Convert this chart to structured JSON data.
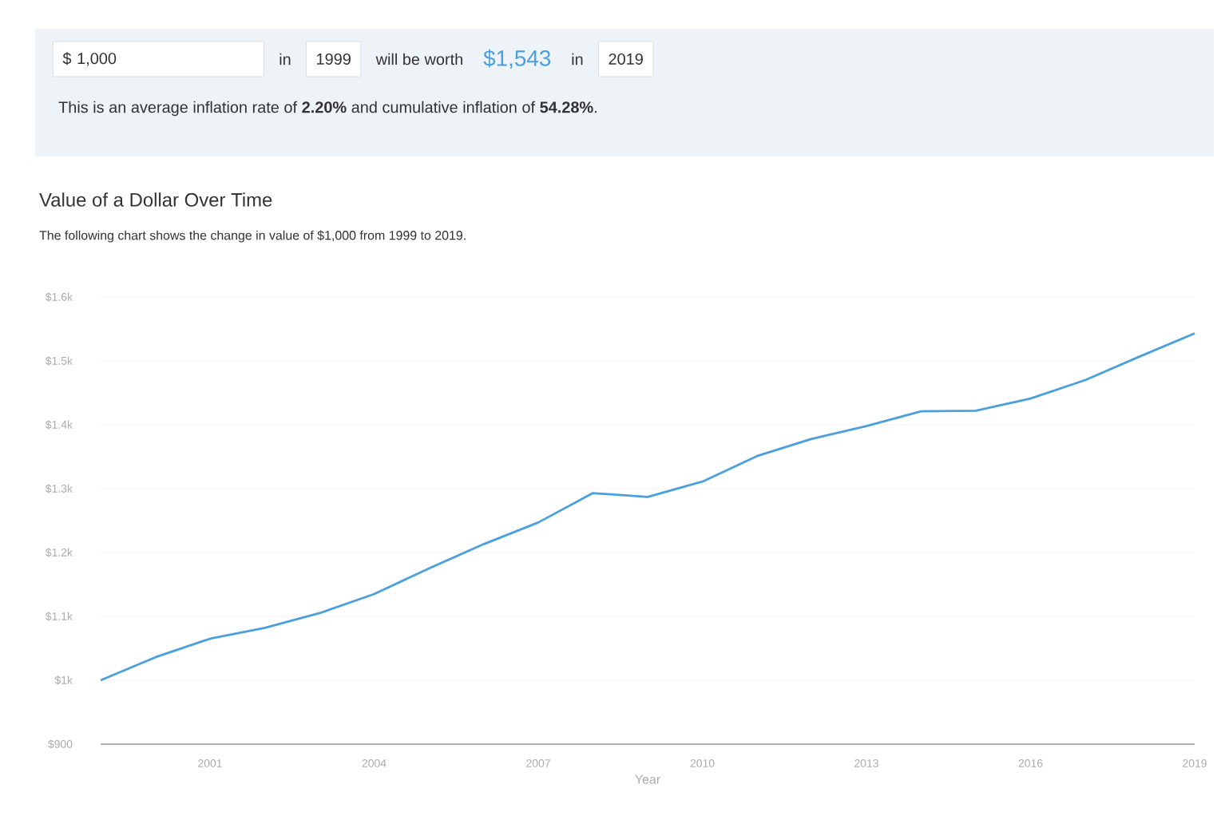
{
  "chart_data": {
    "type": "line",
    "title": "Value of a Dollar Over Time",
    "subtitle": "The following chart shows the change in value of $1,000 from 1999 to 2019.",
    "xlabel": "Year",
    "annotations": [
      "$ 1,000",
      "in",
      "1999",
      "will be worth",
      "$1,543",
      "in",
      "2019",
      "This is an average inflation rate of **2.20%** and cumulative inflation of **54.28%**."
    ],
    "x": [
      1999,
      2000,
      2001,
      2002,
      2003,
      2004,
      2005,
      2006,
      2007,
      2008,
      2009,
      2010,
      2011,
      2012,
      2013,
      2014,
      2015,
      2016,
      2017,
      2018,
      2019
    ],
    "series": [
      {
        "color": "#4a9fdc",
        "values": [
          1000,
          1036,
          1065,
          1082,
          1105,
          1135,
          1175,
          1213,
          1247,
          1293,
          1287,
          1311,
          1351,
          1378,
          1398,
          1421,
          1422,
          1441,
          1470,
          1507,
          1543
        ]
      }
    ],
    "xlim": [
      1999,
      2019
    ],
    "ylim": [
      900,
      1600
    ],
    "xticks": [
      2001,
      2004,
      2007,
      2010,
      2013,
      2016,
      2019
    ],
    "yticks": [
      {
        "value": 900,
        "label": "$900"
      },
      {
        "value": 1000,
        "label": "$1k"
      },
      {
        "value": 1100,
        "label": "$1.1k"
      },
      {
        "value": 1200,
        "label": "$1.2k"
      },
      {
        "value": 1300,
        "label": "$1.3k"
      },
      {
        "value": 1400,
        "label": "$1.4k"
      },
      {
        "value": 1500,
        "label": "$1.5k"
      },
      {
        "value": 1600,
        "label": "$1.6k"
      }
    ],
    "grid": "y"
  }
}
